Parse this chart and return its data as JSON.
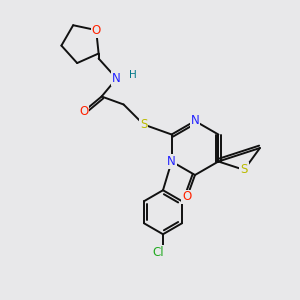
{
  "background_color": "#e8e8ea",
  "atom_colors": {
    "C": "#000000",
    "N": "#2222ff",
    "O": "#ff2200",
    "S": "#bbbb00",
    "Cl": "#22aa22",
    "H": "#007788"
  },
  "bond_color": "#111111",
  "figsize": [
    3.0,
    3.0
  ],
  "dpi": 100,
  "lw": 1.4,
  "fs": 8.5
}
